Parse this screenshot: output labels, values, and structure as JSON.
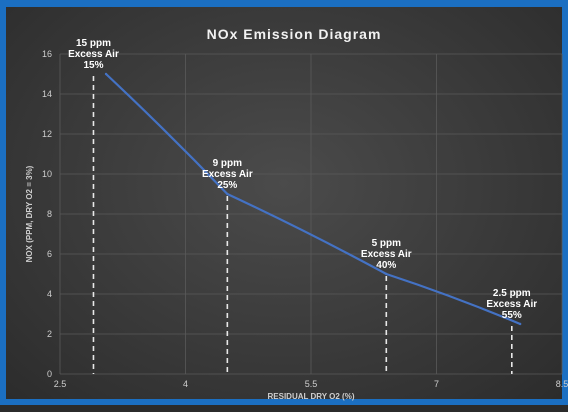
{
  "chart_data": {
    "type": "scatter",
    "title": "NOx Emission Diagram",
    "xlabel": "RESIDUAL DRY O2 (%)",
    "ylabel": "NOX (PPM, DRY O2 = 3%)",
    "xlim": [
      2.5,
      8.5
    ],
    "ylim": [
      0,
      16
    ],
    "x_ticks": [
      "2.5",
      "4",
      "5.5",
      "7",
      "8.5"
    ],
    "y_ticks": [
      "0",
      "2",
      "4",
      "6",
      "8",
      "10",
      "12",
      "14",
      "16"
    ],
    "x_tick_values": [
      2.5,
      4,
      5.5,
      7,
      8.5
    ],
    "y_tick_values": [
      0,
      2,
      4,
      6,
      8,
      10,
      12,
      14,
      16
    ],
    "grid": true,
    "series": [
      {
        "line_style": "solid",
        "color": "#4472c4",
        "x": [
          3.05,
          4.5,
          6.4,
          8.0
        ],
        "y": [
          15.0,
          9.0,
          5.0,
          2.5
        ]
      }
    ],
    "annotations": [
      {
        "x": 2.9,
        "y": 15,
        "lines": [
          "15 ppm",
          "Excess Air",
          "15%"
        ]
      },
      {
        "x": 4.5,
        "y": 9,
        "lines": [
          "9 ppm",
          "Excess Air",
          "25%"
        ]
      },
      {
        "x": 6.4,
        "y": 5,
        "lines": [
          "5 ppm",
          "Excess Air",
          "40%"
        ]
      },
      {
        "x": 7.9,
        "y": 2.5,
        "lines": [
          "2.5 ppm",
          "Excess Air",
          "55%"
        ]
      }
    ],
    "colors": {
      "frame": "#1b6fc2",
      "line": "#4472c4",
      "drop_line": "#e8e8e8",
      "grid": "#5a5a5a",
      "text": "#cfcfcf"
    }
  }
}
